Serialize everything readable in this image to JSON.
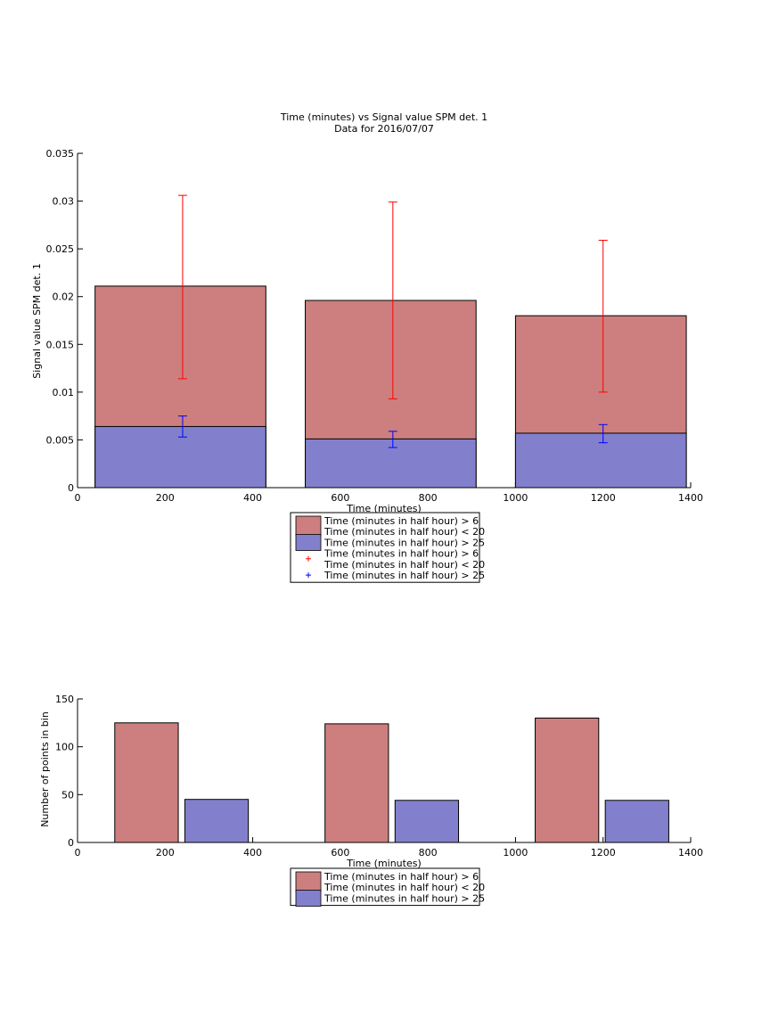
{
  "chart_data": [
    {
      "type": "bar",
      "title": "Time (minutes) vs Signal value SPM det. 1",
      "subtitle": "Data for 2016/07/07",
      "xlabel": "Time (minutes)",
      "ylabel": "Signal value SPM det. 1",
      "xlim": [
        0,
        1400
      ],
      "ylim": [
        0,
        0.035
      ],
      "xticks": [
        "0",
        "200",
        "400",
        "600",
        "800",
        "1000",
        "1200",
        "1400"
      ],
      "yticks": [
        "0",
        "0.005",
        "0.01",
        "0.015",
        "0.02",
        "0.025",
        "0.03",
        "0.035"
      ],
      "bar_range": [
        [
          40,
          430
        ],
        [
          520,
          910
        ],
        [
          1000,
          1390
        ]
      ],
      "error_x": [
        240,
        720,
        1200
      ],
      "series": [
        {
          "name": "Time (minutes in half hour) > 6 Time (minutes in half hour) < 20",
          "color": "#cc7f7e",
          "values": [
            0.0211,
            0.0196,
            0.018
          ],
          "error_low": [
            0.0114,
            0.0093,
            0.01
          ],
          "error_high": [
            0.0306,
            0.0299,
            0.0259
          ],
          "error_color": "#ff0000"
        },
        {
          "name": "Time (minutes in half hour) > 25",
          "color": "#8280cc",
          "values": [
            0.0064,
            0.0051,
            0.0057
          ],
          "error_low": [
            0.0053,
            0.0042,
            0.0047
          ],
          "error_high": [
            0.0075,
            0.0059,
            0.0066
          ],
          "error_color": "#0000ff"
        }
      ],
      "legend": [
        {
          "kind": "patch",
          "color": "#cc7f7e",
          "lines": [
            "Time (minutes in half hour) > 6",
            "Time (minutes in half hour) < 20"
          ]
        },
        {
          "kind": "patch",
          "color": "#8280cc",
          "lines": [
            "Time (minutes in half hour) > 25"
          ]
        },
        {
          "kind": "marker",
          "color": "#ff0000",
          "lines": [
            "Time (minutes in half hour) > 6",
            "Time (minutes in half hour) < 20"
          ]
        },
        {
          "kind": "marker",
          "color": "#0000ff",
          "lines": [
            "Time (minutes in half hour) > 25"
          ]
        }
      ],
      "legend_position": "below axes"
    },
    {
      "type": "bar",
      "xlabel": "Time (minutes)",
      "ylabel": "Number of points in bin",
      "xlim": [
        0,
        1400
      ],
      "ylim": [
        0,
        150
      ],
      "xticks": [
        "0",
        "200",
        "400",
        "600",
        "800",
        "1000",
        "1200",
        "1400"
      ],
      "yticks": [
        "0",
        "50",
        "100",
        "150"
      ],
      "series": [
        {
          "name": "Time (minutes in half hour) > 6 Time (minutes in half hour) < 20",
          "color": "#cc7f7e",
          "x_range": [
            [
              85,
              230
            ],
            [
              565,
              710
            ],
            [
              1045,
              1190
            ]
          ],
          "values": [
            125,
            124,
            130
          ]
        },
        {
          "name": "Time (minutes in half hour) > 25",
          "color": "#8280cc",
          "x_range": [
            [
              245,
              390
            ],
            [
              725,
              870
            ],
            [
              1205,
              1350
            ]
          ],
          "values": [
            45,
            44,
            44
          ]
        }
      ],
      "legend": [
        {
          "kind": "patch",
          "color": "#cc7f7e",
          "lines": [
            "Time (minutes in half hour) > 6",
            "Time (minutes in half hour) < 20"
          ]
        },
        {
          "kind": "patch",
          "color": "#8280cc",
          "lines": [
            "Time (minutes in half hour) > 25"
          ]
        }
      ],
      "legend_position": "below axes"
    }
  ]
}
